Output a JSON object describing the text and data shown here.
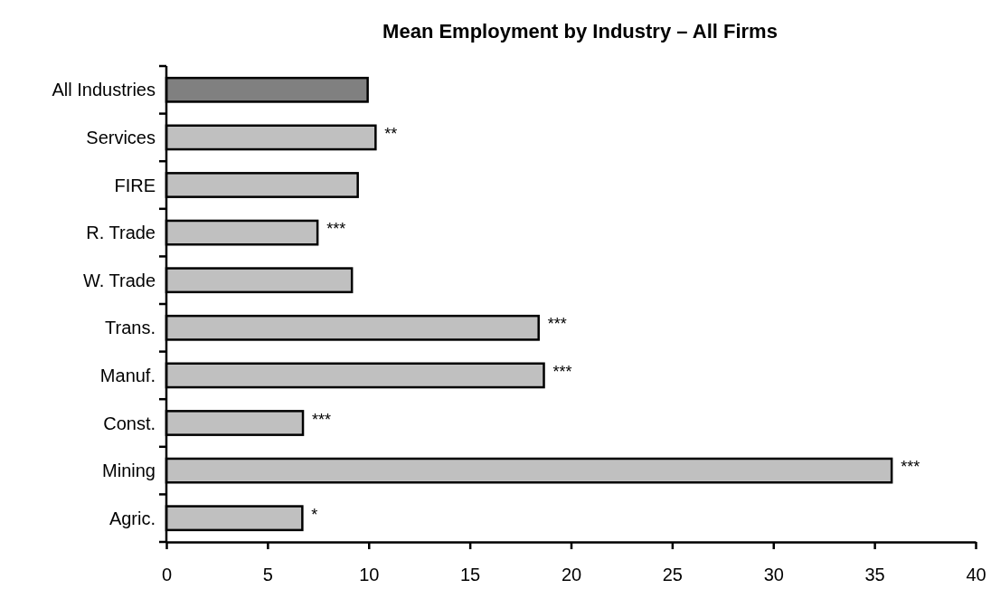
{
  "chart_data": {
    "type": "bar",
    "orientation": "horizontal",
    "title": "Mean Employment by Industry – All Firms",
    "categories": [
      "All Industries",
      "Services",
      "FIRE",
      "R. Trade",
      "W. Trade",
      "Trans.",
      "Manuf.",
      "Const.",
      "Mining",
      "Agric."
    ],
    "values": [
      9.95,
      10.34,
      9.46,
      7.47,
      9.17,
      18.4,
      18.66,
      6.75,
      35.85,
      6.72
    ],
    "colors": [
      "#808080",
      "#c0c0c0",
      "#c0c0c0",
      "#c0c0c0",
      "#c0c0c0",
      "#c0c0c0",
      "#c0c0c0",
      "#c0c0c0",
      "#c0c0c0",
      "#c0c0c0"
    ],
    "value_labels": [
      null,
      "**",
      null,
      "***",
      null,
      "***",
      "***",
      "***",
      "***",
      "*"
    ],
    "xlim": [
      0,
      40
    ],
    "xticks": [
      0,
      5,
      10,
      15,
      20,
      25,
      30,
      35,
      40
    ]
  }
}
